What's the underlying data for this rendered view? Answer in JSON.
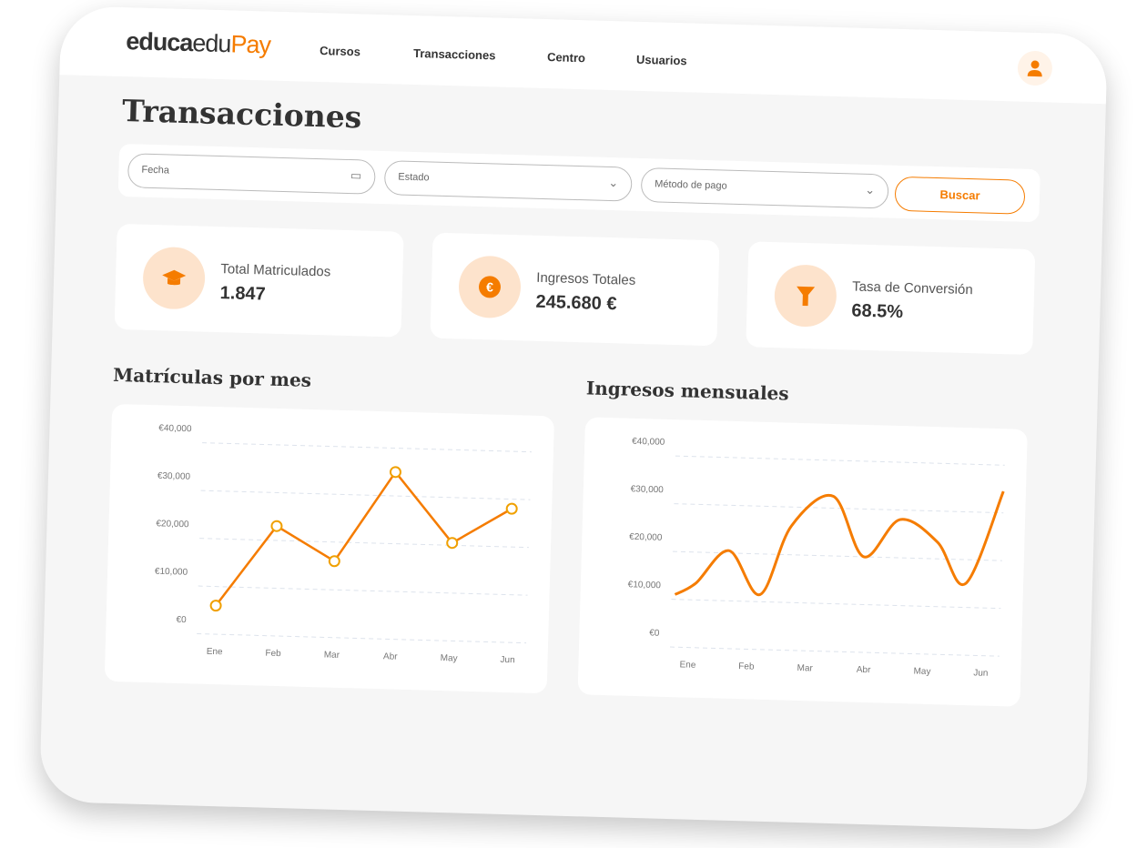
{
  "brand": {
    "part1": "educa",
    "part2": "edu",
    "part3": "Pay",
    "accent": "#f57c00"
  },
  "nav": {
    "items": [
      "Cursos",
      "Transacciones",
      "Centro",
      "Usuarios"
    ],
    "user_icon": "user-icon"
  },
  "page_title": "Transacciones",
  "filters": {
    "fecha_placeholder": "Fecha",
    "estado_placeholder": "Estado",
    "metodo_placeholder": "Método de pago",
    "search_label": "Buscar"
  },
  "kpis": [
    {
      "label": "Total Matriculados",
      "value": "1.847",
      "icon": "graduation-cap-icon"
    },
    {
      "label": "Ingresos Totales",
      "value": "245.680 €",
      "icon": "euro-icon"
    },
    {
      "label": "Tasa de Conversión",
      "value": "68.5%",
      "icon": "funnel-icon"
    }
  ],
  "chart_titles": [
    "Matrículas por mes",
    "Ingresos mensuales"
  ],
  "chart_data": [
    {
      "type": "line",
      "categories": [
        "Ene",
        "Feb",
        "Mar",
        "Abr",
        "May",
        "Jun"
      ],
      "values": [
        6000,
        23000,
        16000,
        35000,
        20500,
        28000
      ],
      "ylim": [
        0,
        40000
      ],
      "yticks": [
        "€0",
        "€10,000",
        "€20,000",
        "€30,000",
        "€40,000"
      ],
      "grid": true,
      "markers": true,
      "color": "#f57c00"
    },
    {
      "type": "line",
      "smooth": true,
      "categories": [
        "Ene",
        "Feb",
        "Mar",
        "Abr",
        "May",
        "Jun"
      ],
      "x": [
        -0.25,
        0.1,
        0.65,
        1.2,
        1.7,
        2.4,
        2.95,
        3.55,
        4.2,
        4.7,
        5.3
      ],
      "values": [
        11000,
        13500,
        20500,
        11500,
        26000,
        32500,
        20000,
        28000,
        23500,
        15000,
        34500
      ],
      "ylim": [
        0,
        40000
      ],
      "yticks": [
        "€0",
        "€10,000",
        "€20,000",
        "€30,000",
        "€40,000"
      ],
      "grid": true,
      "color": "#f57c00"
    }
  ]
}
